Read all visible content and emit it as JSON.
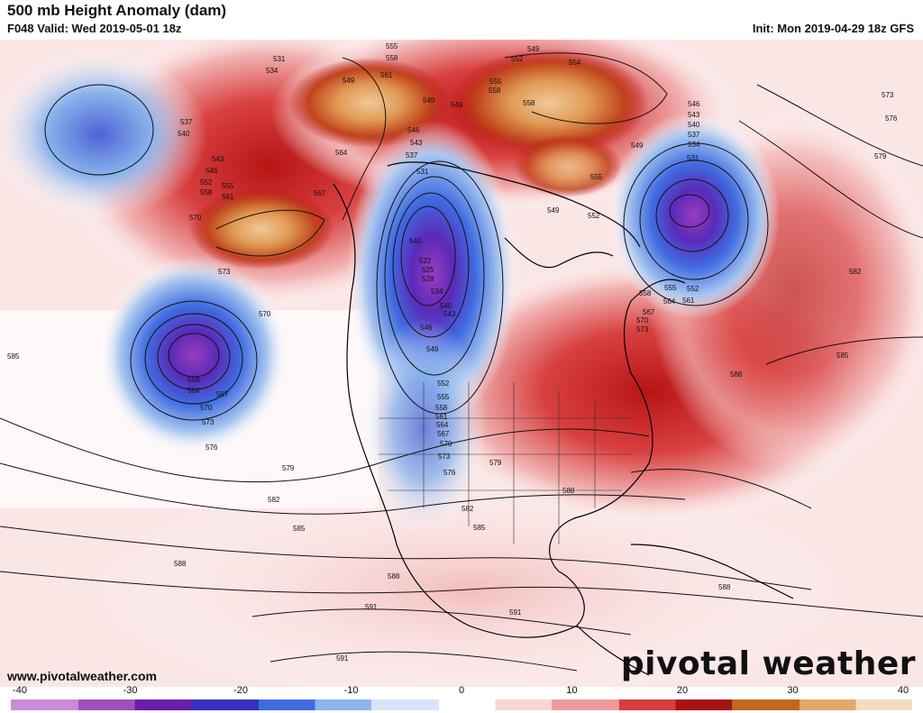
{
  "header": {
    "title": "500 mb Height Anomaly (dam)",
    "valid": "F048 Valid: Wed 2019-05-01 18z",
    "init": "Init: Mon 2019-04-29 18z GFS"
  },
  "footer": {
    "website": "www.pivotalweather.com",
    "logo": "pivotal weather"
  },
  "colorbar": {
    "min": -40,
    "max": 40,
    "ticks": [
      "-40",
      "-30",
      "-20",
      "-10",
      "0",
      "10",
      "20",
      "30",
      "40"
    ],
    "colors": [
      "#c98bd6",
      "#a24fbe",
      "#6a1fa8",
      "#3a2fc0",
      "#3f6ce0",
      "#8db4ec",
      "#d6e4f6",
      "#ffffff",
      "#f8d6d6",
      "#ee9a9a",
      "#d83c3c",
      "#a81414",
      "#c0661e",
      "#e2a868",
      "#f2dcc0"
    ]
  },
  "contour_labels": [
    "531",
    "534",
    "537",
    "540",
    "543",
    "546",
    "552",
    "555",
    "558",
    "561",
    "564",
    "567",
    "570",
    "573",
    "576",
    "579",
    "582",
    "585",
    "588",
    "591",
    "522",
    "525",
    "528",
    "549"
  ],
  "anomaly_features": [
    {
      "kind": "negative",
      "label": "pacific-low"
    },
    {
      "kind": "negative",
      "label": "gulf-of-alaska-low"
    },
    {
      "kind": "negative",
      "label": "western-canada-trough"
    },
    {
      "kind": "negative",
      "label": "labrador-low"
    },
    {
      "kind": "positive",
      "label": "alaska-ridge"
    },
    {
      "kind": "positive",
      "label": "arctic-ridge"
    },
    {
      "kind": "positive",
      "label": "eastern-us-ridge"
    }
  ],
  "colors": {
    "background": "#ffffff",
    "positive_strong": "#b81414",
    "negative_strong": "#6a1fa8"
  }
}
